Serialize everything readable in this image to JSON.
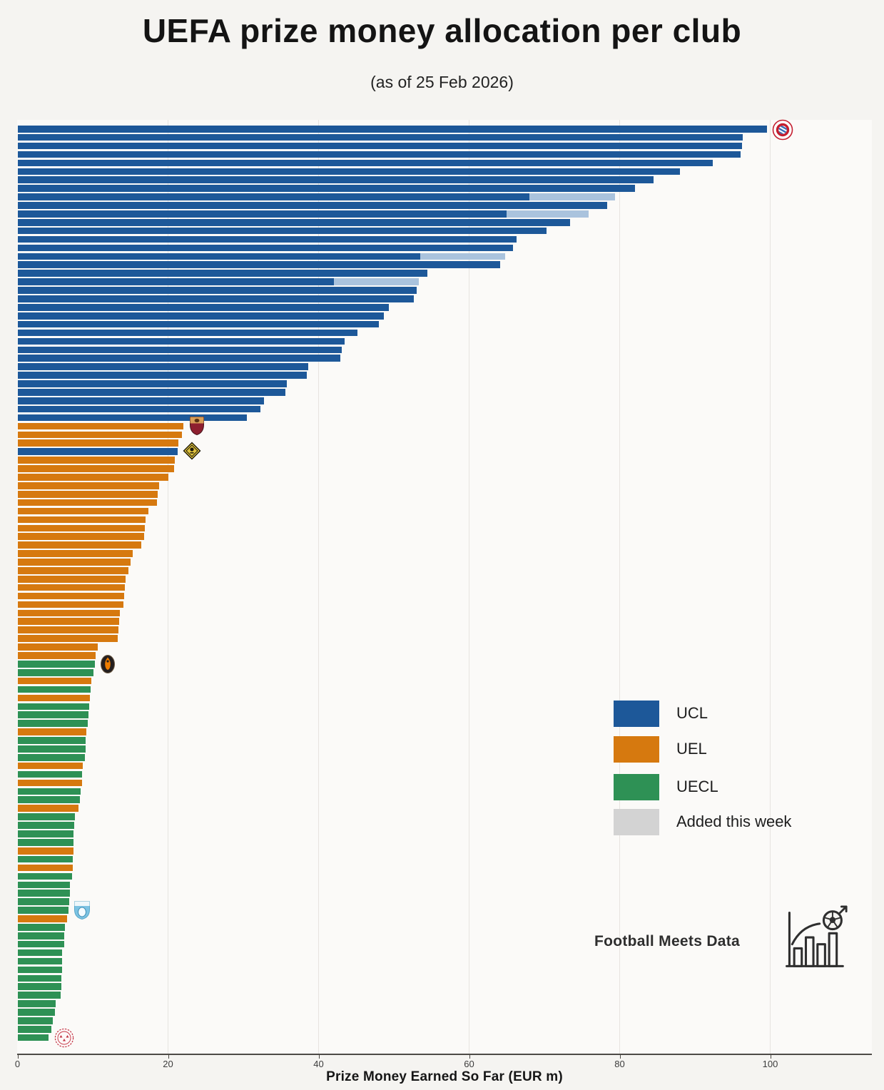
{
  "page": {
    "title": "UEFA prize money allocation per club",
    "subtitle": "(as of 25 Feb 2026)",
    "watermark": "Football Meets Data"
  },
  "legend": {
    "items": [
      {
        "label": "UCL",
        "color": "#1d5899"
      },
      {
        "label": "UEL",
        "color": "#d6790f"
      },
      {
        "label": "UECL",
        "color": "#2e9155"
      },
      {
        "label": "Added this week",
        "color": "#d3d3d3"
      }
    ]
  },
  "chart_data": {
    "type": "bar",
    "orientation": "horizontal",
    "title": "UEFA prize money allocation per club",
    "subtitle": "(as of 25 Feb 2026)",
    "xlabel": "Prize Money Earned So Far (EUR m)",
    "ylabel": "",
    "xlim": [
      0,
      113
    ],
    "xticks": [
      0,
      20,
      40,
      60,
      80,
      100
    ],
    "grid": "vertical-light",
    "sort": "descending-by-value",
    "legend_position": "center-right",
    "league_colors": {
      "UCL": "#1d5899",
      "UEL": "#d6790f",
      "UECL": "#2e9155"
    },
    "added_segment_color": "#aac3dd",
    "added_legend_color": "#d3d3d3",
    "note": "values in EUR millions; 'added' = amount added this week shown as light segment; badge = club crest drawn at bar end",
    "bars": [
      {
        "league": "UCL",
        "value": 99.5,
        "badge": "bayern-badge"
      },
      {
        "league": "UCL",
        "value": 96.3
      },
      {
        "league": "UCL",
        "value": 96.2
      },
      {
        "league": "UCL",
        "value": 96.0
      },
      {
        "league": "UCL",
        "value": 92.3
      },
      {
        "league": "UCL",
        "value": 88.0
      },
      {
        "league": "UCL",
        "value": 84.5
      },
      {
        "league": "UCL",
        "value": 82.0
      },
      {
        "league": "UCL",
        "value": 68.0,
        "added": 11.3
      },
      {
        "league": "UCL",
        "value": 78.3
      },
      {
        "league": "UCL",
        "value": 64.9,
        "added": 10.9
      },
      {
        "league": "UCL",
        "value": 73.4
      },
      {
        "league": "UCL",
        "value": 70.2
      },
      {
        "league": "UCL",
        "value": 66.3
      },
      {
        "league": "UCL",
        "value": 65.8
      },
      {
        "league": "UCL",
        "value": 53.5,
        "added": 11.2
      },
      {
        "league": "UCL",
        "value": 64.1
      },
      {
        "league": "UCL",
        "value": 54.4
      },
      {
        "league": "UCL",
        "value": 42.0,
        "added": 11.3
      },
      {
        "league": "UCL",
        "value": 53.0
      },
      {
        "league": "UCL",
        "value": 52.6
      },
      {
        "league": "UCL",
        "value": 49.3
      },
      {
        "league": "UCL",
        "value": 48.6
      },
      {
        "league": "UCL",
        "value": 48.0
      },
      {
        "league": "UCL",
        "value": 45.1
      },
      {
        "league": "UCL",
        "value": 43.4
      },
      {
        "league": "UCL",
        "value": 43.0
      },
      {
        "league": "UCL",
        "value": 42.8
      },
      {
        "league": "UCL",
        "value": 38.6
      },
      {
        "league": "UCL",
        "value": 38.4
      },
      {
        "league": "UCL",
        "value": 35.7
      },
      {
        "league": "UCL",
        "value": 35.5
      },
      {
        "league": "UCL",
        "value": 32.7
      },
      {
        "league": "UCL",
        "value": 32.2
      },
      {
        "league": "UCL",
        "value": 30.4
      },
      {
        "league": "UEL",
        "value": 22.0,
        "badge": "roma-badge"
      },
      {
        "league": "UEL",
        "value": 21.8
      },
      {
        "league": "UEL",
        "value": 21.3
      },
      {
        "league": "UCL",
        "value": 21.2,
        "badge": "diamond-badge"
      },
      {
        "league": "UEL",
        "value": 20.9
      },
      {
        "league": "UEL",
        "value": 20.8
      },
      {
        "league": "UEL",
        "value": 20.0
      },
      {
        "league": "UEL",
        "value": 18.8
      },
      {
        "league": "UEL",
        "value": 18.6
      },
      {
        "league": "UEL",
        "value": 18.5
      },
      {
        "league": "UEL",
        "value": 17.3
      },
      {
        "league": "UEL",
        "value": 17.0
      },
      {
        "league": "UEL",
        "value": 16.9
      },
      {
        "league": "UEL",
        "value": 16.8
      },
      {
        "league": "UEL",
        "value": 16.4
      },
      {
        "league": "UEL",
        "value": 15.3
      },
      {
        "league": "UEL",
        "value": 15.0
      },
      {
        "league": "UEL",
        "value": 14.7
      },
      {
        "league": "UEL",
        "value": 14.3
      },
      {
        "league": "UEL",
        "value": 14.2
      },
      {
        "league": "UEL",
        "value": 14.1
      },
      {
        "league": "UEL",
        "value": 14.0
      },
      {
        "league": "UEL",
        "value": 13.6
      },
      {
        "league": "UEL",
        "value": 13.5
      },
      {
        "league": "UEL",
        "value": 13.4
      },
      {
        "league": "UEL",
        "value": 13.3
      },
      {
        "league": "UEL",
        "value": 10.6
      },
      {
        "league": "UEL",
        "value": 10.3
      },
      {
        "league": "UECL",
        "value": 10.2,
        "badge": "shakhtar-badge"
      },
      {
        "league": "UECL",
        "value": 10.0
      },
      {
        "league": "UEL",
        "value": 9.8
      },
      {
        "league": "UECL",
        "value": 9.7
      },
      {
        "league": "UEL",
        "value": 9.6
      },
      {
        "league": "UECL",
        "value": 9.5
      },
      {
        "league": "UECL",
        "value": 9.4
      },
      {
        "league": "UECL",
        "value": 9.3
      },
      {
        "league": "UEL",
        "value": 9.1
      },
      {
        "league": "UECL",
        "value": 9.0
      },
      {
        "league": "UECL",
        "value": 9.0
      },
      {
        "league": "UECL",
        "value": 8.9
      },
      {
        "league": "UEL",
        "value": 8.6
      },
      {
        "league": "UECL",
        "value": 8.5
      },
      {
        "league": "UEL",
        "value": 8.5
      },
      {
        "league": "UECL",
        "value": 8.3
      },
      {
        "league": "UECL",
        "value": 8.2
      },
      {
        "league": "UEL",
        "value": 8.1
      },
      {
        "league": "UECL",
        "value": 7.6
      },
      {
        "league": "UECL",
        "value": 7.5
      },
      {
        "league": "UECL",
        "value": 7.4
      },
      {
        "league": "UECL",
        "value": 7.4
      },
      {
        "league": "UEL",
        "value": 7.4
      },
      {
        "league": "UECL",
        "value": 7.3
      },
      {
        "league": "UEL",
        "value": 7.3
      },
      {
        "league": "UECL",
        "value": 7.2
      },
      {
        "league": "UECL",
        "value": 6.9
      },
      {
        "league": "UECL",
        "value": 6.9
      },
      {
        "league": "UECL",
        "value": 6.8
      },
      {
        "league": "UECL",
        "value": 6.7,
        "badge": "malmo-badge"
      },
      {
        "league": "UEL",
        "value": 6.5
      },
      {
        "league": "UECL",
        "value": 6.3
      },
      {
        "league": "UECL",
        "value": 6.2
      },
      {
        "league": "UECL",
        "value": 6.2
      },
      {
        "league": "UECL",
        "value": 5.9
      },
      {
        "league": "UECL",
        "value": 5.9
      },
      {
        "league": "UECL",
        "value": 5.9
      },
      {
        "league": "UECL",
        "value": 5.8
      },
      {
        "league": "UECL",
        "value": 5.8
      },
      {
        "league": "UECL",
        "value": 5.7
      },
      {
        "league": "UECL",
        "value": 5.0
      },
      {
        "league": "UECL",
        "value": 4.9
      },
      {
        "league": "UECL",
        "value": 4.6
      },
      {
        "league": "UECL",
        "value": 4.5
      },
      {
        "league": "UECL",
        "value": 4.1,
        "badge": "red-white-badge"
      }
    ]
  }
}
